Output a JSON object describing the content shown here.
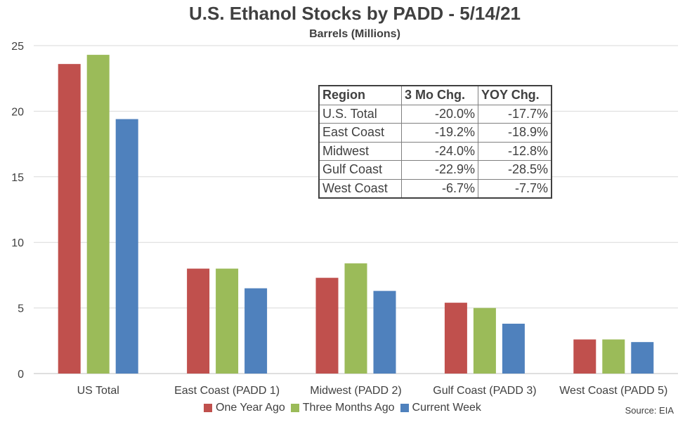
{
  "chart_data": {
    "type": "bar",
    "title": "U.S. Ethanol Stocks by PADD - 5/14/21",
    "subtitle": "Barrels (Millions)",
    "xlabel": "",
    "ylabel": "",
    "categories": [
      "US Total",
      "East Coast (PADD 1)",
      "Midwest (PADD 2)",
      "Gulf Coast (PADD 3)",
      "West Coast (PADD 5)"
    ],
    "series": [
      {
        "name": "One Year Ago",
        "color": "#C0504D",
        "values": [
          23.6,
          8.0,
          7.3,
          5.4,
          2.6
        ]
      },
      {
        "name": "Three Months Ago",
        "color": "#9BBB59",
        "values": [
          24.3,
          8.0,
          8.4,
          5.0,
          2.6
        ]
      },
      {
        "name": "Current Week",
        "color": "#4F81BD",
        "values": [
          19.4,
          6.5,
          6.3,
          3.8,
          2.4
        ]
      }
    ],
    "ylim": [
      0,
      25
    ],
    "yticks": [
      0,
      5,
      10,
      15,
      20,
      25
    ],
    "grid": true,
    "legend_position": "bottom",
    "source": "Source: EIA",
    "table": {
      "headers": [
        "Region",
        "3 Mo Chg.",
        "YOY Chg."
      ],
      "rows": [
        [
          "U.S. Total",
          "-20.0%",
          "-17.7%"
        ],
        [
          "East Coast",
          "-19.2%",
          "-18.9%"
        ],
        [
          "Midwest",
          "-24.0%",
          "-12.8%"
        ],
        [
          "Gulf Coast",
          "-22.9%",
          "-28.5%"
        ],
        [
          "West Coast",
          "-6.7%",
          "-7.7%"
        ]
      ]
    }
  }
}
